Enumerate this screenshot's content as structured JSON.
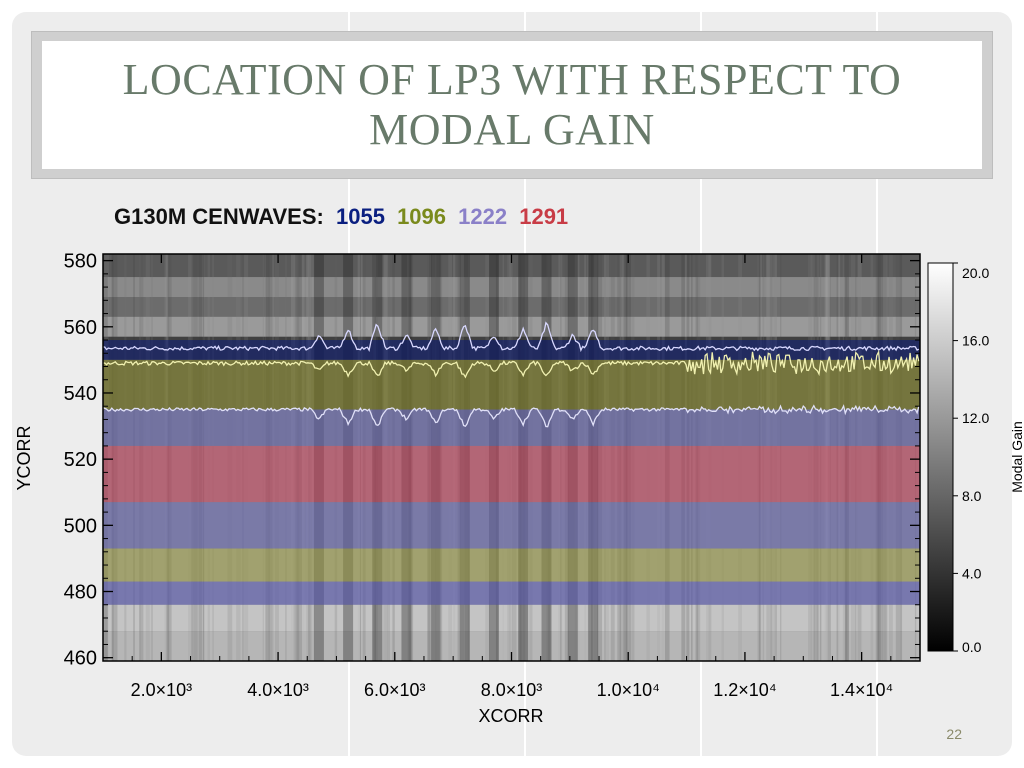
{
  "slide": {
    "title": "LOCATION OF LP3 WITH RESPECT TO MODAL GAIN",
    "page_number": "22"
  },
  "legend": {
    "prefix": "G130M CENWAVES:",
    "items": [
      {
        "label": "1055",
        "color": "#0a1f80"
      },
      {
        "label": "1096",
        "color": "#7a8a1c"
      },
      {
        "label": "1222",
        "color": "#8a80c8"
      },
      {
        "label": "1291",
        "color": "#c83c46"
      }
    ]
  },
  "chart_data": {
    "type": "heatmap",
    "xlabel": "XCORR",
    "ylabel": "YCORR",
    "xlim": [
      1000,
      15000
    ],
    "ylim": [
      459,
      582
    ],
    "x_ticks": [
      {
        "value": 2000,
        "label": "2.0×10³"
      },
      {
        "value": 4000,
        "label": "4.0×10³"
      },
      {
        "value": 6000,
        "label": "6.0×10³"
      },
      {
        "value": 8000,
        "label": "8.0×10³"
      },
      {
        "value": 10000,
        "label": "1.0×10⁴"
      },
      {
        "value": 12000,
        "label": "1.2×10⁴"
      },
      {
        "value": 14000,
        "label": "1.4×10⁴"
      }
    ],
    "y_ticks": [
      {
        "value": 460,
        "label": "460"
      },
      {
        "value": 480,
        "label": "480"
      },
      {
        "value": 500,
        "label": "500"
      },
      {
        "value": 520,
        "label": "520"
      },
      {
        "value": 540,
        "label": "540"
      },
      {
        "value": 560,
        "label": "560"
      },
      {
        "value": 580,
        "label": "580"
      }
    ],
    "bands": [
      {
        "cenwave": "1055",
        "y_from": 550,
        "y_to": 556,
        "color": "#0a1a78"
      },
      {
        "cenwave": "1096",
        "y_from": 535,
        "y_to": 550,
        "color": "#8c8c28"
      },
      {
        "cenwave": "1222",
        "y_from": 524,
        "y_to": 535,
        "color": "#6e6ec0"
      },
      {
        "cenwave": "1291",
        "y_from": 507,
        "y_to": 524,
        "color": "#c83c5a"
      },
      {
        "cenwave": "1222",
        "y_from": 493,
        "y_to": 507,
        "color": "#6e6ec0"
      },
      {
        "cenwave": "1096",
        "y_from": 483,
        "y_to": 493,
        "color": "#9a9a40"
      },
      {
        "cenwave": "1222",
        "y_from": 476,
        "y_to": 483,
        "color": "#5c5cc0"
      }
    ],
    "colorbar": {
      "label": "Modal Gain",
      "range": [
        0,
        20
      ],
      "ticks": [
        "20.0",
        "16.0",
        "12.0",
        "8.0",
        "4.0",
        "0.0"
      ],
      "tick_values": [
        20,
        16,
        12,
        8,
        4,
        0
      ]
    },
    "gain_contours": [
      {
        "name": "upper",
        "baseline": 553.5,
        "color": "#d8d8ff"
      },
      {
        "name": "middle",
        "baseline": 549,
        "color": "#f0f0b0"
      },
      {
        "name": "lower",
        "baseline": 535,
        "color": "#e0e0f8"
      }
    ],
    "peak_positions_x": [
      4700,
      5200,
      5700,
      6200,
      6700,
      7200,
      7700,
      8200,
      8600,
      9050,
      9400
    ]
  },
  "colors": {
    "title": "#687a6a",
    "legend_prefix": "#111111"
  }
}
